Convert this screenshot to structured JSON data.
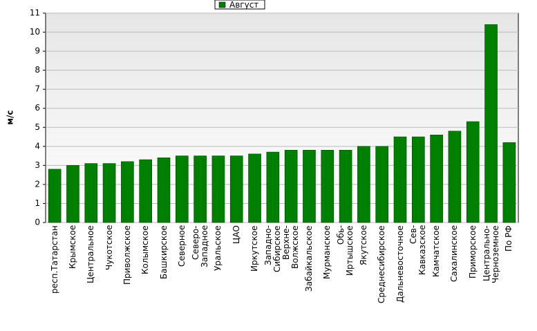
{
  "chart_data": {
    "type": "bar",
    "y_label": "м/с",
    "categories": [
      "респ.Татарстан",
      "Крымское",
      "Центральное",
      "Чукотское",
      "Приволжское",
      "Колымское",
      "Башкирское",
      "Северное",
      "Северо-\nЗападное",
      "Уральское",
      "ЦАО",
      "Иркутское",
      "Западно-\nСибирское",
      "Верхне-\nВолжское",
      "Забайкальское",
      "Мурманское",
      "Обь-\nИртышское",
      "Якутское",
      "Среднесибирское",
      "Дальневосточное",
      "Сев-\nКавказское",
      "Камчатское",
      "Сахалинское",
      "Приморское",
      "Центрально-\nЧерноземное",
      "По РФ"
    ],
    "series": [
      {
        "name": "Август",
        "color": "#008000",
        "values": [
          2.8,
          3.0,
          3.1,
          3.1,
          3.2,
          3.3,
          3.4,
          3.5,
          3.5,
          3.5,
          3.5,
          3.6,
          3.7,
          3.8,
          3.8,
          3.8,
          3.8,
          4.0,
          4.0,
          4.5,
          4.5,
          4.6,
          4.8,
          5.3,
          10.4,
          4.2
        ]
      }
    ],
    "ylim": [
      0,
      11
    ],
    "yticks": [
      0,
      1,
      2,
      3,
      4,
      5,
      6,
      7,
      8,
      9,
      10,
      11
    ],
    "grid": true,
    "legend": "top"
  }
}
